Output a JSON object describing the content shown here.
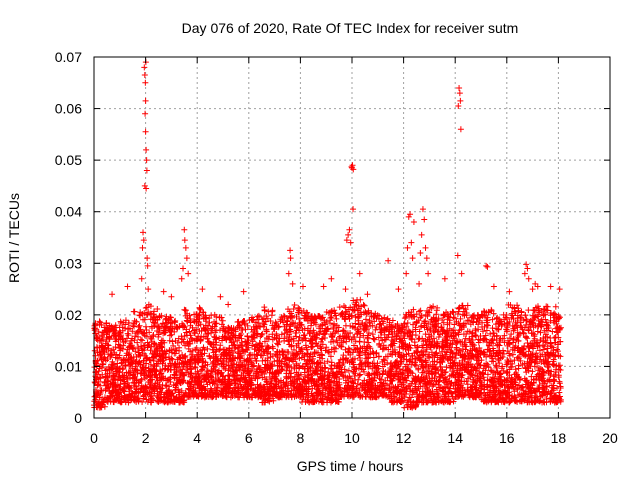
{
  "chart_data": {
    "type": "scatter",
    "title": "Day 076 of 2020, Rate Of TEC Index for receiver sutm",
    "xlabel": "GPS time / hours",
    "ylabel": "ROTI / TECUs",
    "xlim": [
      0,
      20
    ],
    "ylim": [
      0,
      0.07
    ],
    "x_ticks": [
      0,
      2,
      4,
      6,
      8,
      10,
      12,
      14,
      16,
      18,
      20
    ],
    "y_ticks": [
      0,
      0.01,
      0.02,
      0.03,
      0.04,
      0.05,
      0.06,
      0.07
    ],
    "x_tick_labels": [
      "0",
      "2",
      "4",
      "6",
      "8",
      "10",
      "12",
      "14",
      "16",
      "18",
      "20"
    ],
    "y_tick_labels": [
      "0",
      "0.01",
      "0.02",
      "0.03",
      "0.04",
      "0.05",
      "0.06",
      "0.07"
    ],
    "grid": true,
    "marker": "+",
    "color": "#ff0000",
    "data_x_range": [
      0,
      18.1
    ],
    "series": [
      {
        "name": "ROTI",
        "points": [
          [
            1.95,
            0.068
          ],
          [
            1.97,
            0.0665
          ],
          [
            1.99,
            0.065
          ],
          [
            2.0,
            0.0615
          ],
          [
            1.98,
            0.059
          ],
          [
            2.0,
            0.0555
          ],
          [
            2.02,
            0.052
          ],
          [
            2.04,
            0.05
          ],
          [
            2.05,
            0.048
          ],
          [
            1.97,
            0.045
          ],
          [
            2.02,
            0.0445
          ],
          [
            2.01,
            0.069
          ],
          [
            1.9,
            0.036
          ],
          [
            1.93,
            0.0345
          ],
          [
            2.06,
            0.031
          ],
          [
            2.08,
            0.0295
          ],
          [
            1.88,
            0.033
          ],
          [
            2.1,
            0.025
          ],
          [
            1.85,
            0.027
          ],
          [
            3.5,
            0.0365
          ],
          [
            3.52,
            0.0345
          ],
          [
            3.56,
            0.033
          ],
          [
            3.6,
            0.031
          ],
          [
            3.45,
            0.029
          ],
          [
            3.4,
            0.027
          ],
          [
            3.65,
            0.028
          ],
          [
            7.6,
            0.0325
          ],
          [
            7.62,
            0.031
          ],
          [
            7.55,
            0.028
          ],
          [
            7.7,
            0.026
          ],
          [
            9.9,
            0.0365
          ],
          [
            9.85,
            0.0355
          ],
          [
            9.95,
            0.034
          ],
          [
            9.8,
            0.0345
          ],
          [
            10.0,
            0.0485
          ],
          [
            10.02,
            0.049
          ],
          [
            10.05,
            0.0482
          ],
          [
            9.98,
            0.0487
          ],
          [
            10.04,
            0.0405
          ],
          [
            9.75,
            0.025
          ],
          [
            10.3,
            0.028
          ],
          [
            12.2,
            0.039
          ],
          [
            12.25,
            0.0395
          ],
          [
            12.3,
            0.034
          ],
          [
            12.15,
            0.033
          ],
          [
            12.35,
            0.031
          ],
          [
            12.4,
            0.038
          ],
          [
            12.1,
            0.028
          ],
          [
            12.75,
            0.0405
          ],
          [
            12.8,
            0.0385
          ],
          [
            12.7,
            0.0355
          ],
          [
            12.85,
            0.033
          ],
          [
            12.9,
            0.031
          ],
          [
            12.65,
            0.032
          ],
          [
            12.95,
            0.028
          ],
          [
            12.6,
            0.026
          ],
          [
            14.15,
            0.064
          ],
          [
            14.18,
            0.063
          ],
          [
            14.2,
            0.0615
          ],
          [
            14.12,
            0.0605
          ],
          [
            14.22,
            0.056
          ],
          [
            14.1,
            0.0315
          ],
          [
            14.25,
            0.028
          ],
          [
            15.2,
            0.0295
          ],
          [
            15.25,
            0.0293
          ],
          [
            16.75,
            0.0298
          ],
          [
            16.8,
            0.029
          ],
          [
            16.7,
            0.028
          ],
          [
            16.85,
            0.027
          ],
          [
            17.1,
            0.026
          ],
          [
            17.2,
            0.0255
          ],
          [
            17.0,
            0.025
          ],
          [
            11.4,
            0.0305
          ],
          [
            8.1,
            0.0255
          ],
          [
            8.9,
            0.0255
          ],
          [
            9.2,
            0.027
          ],
          [
            5.8,
            0.0245
          ],
          [
            4.9,
            0.0235
          ],
          [
            4.2,
            0.025
          ],
          [
            0.7,
            0.024
          ],
          [
            1.3,
            0.0255
          ],
          [
            6.6,
            0.0215
          ],
          [
            2.7,
            0.0245
          ],
          [
            16.1,
            0.0245
          ],
          [
            15.5,
            0.0255
          ],
          [
            17.7,
            0.0255
          ],
          [
            18.05,
            0.025
          ],
          [
            13.6,
            0.027
          ],
          [
            11.8,
            0.025
          ],
          [
            10.6,
            0.024
          ],
          [
            5.2,
            0.022
          ],
          [
            3.0,
            0.0235
          ]
        ],
        "density_envelope": {
          "x_start": 0.0,
          "x_step": 0.5,
          "upper": [
            0.019,
            0.018,
            0.019,
            0.021,
            0.022,
            0.02,
            0.019,
            0.021,
            0.022,
            0.02,
            0.018,
            0.019,
            0.02,
            0.021,
            0.02,
            0.022,
            0.021,
            0.02,
            0.021,
            0.022,
            0.023,
            0.021,
            0.02,
            0.019,
            0.022,
            0.021,
            0.022,
            0.021,
            0.022,
            0.02,
            0.021,
            0.02,
            0.022,
            0.021,
            0.022,
            0.022,
            0.02
          ],
          "lower": [
            0.002,
            0.003,
            0.003,
            0.003,
            0.003,
            0.003,
            0.003,
            0.004,
            0.004,
            0.004,
            0.004,
            0.004,
            0.004,
            0.003,
            0.004,
            0.004,
            0.003,
            0.003,
            0.003,
            0.004,
            0.004,
            0.004,
            0.004,
            0.003,
            0.002,
            0.003,
            0.003,
            0.003,
            0.004,
            0.004,
            0.003,
            0.003,
            0.003,
            0.003,
            0.003,
            0.003,
            0.003
          ]
        }
      }
    ]
  }
}
